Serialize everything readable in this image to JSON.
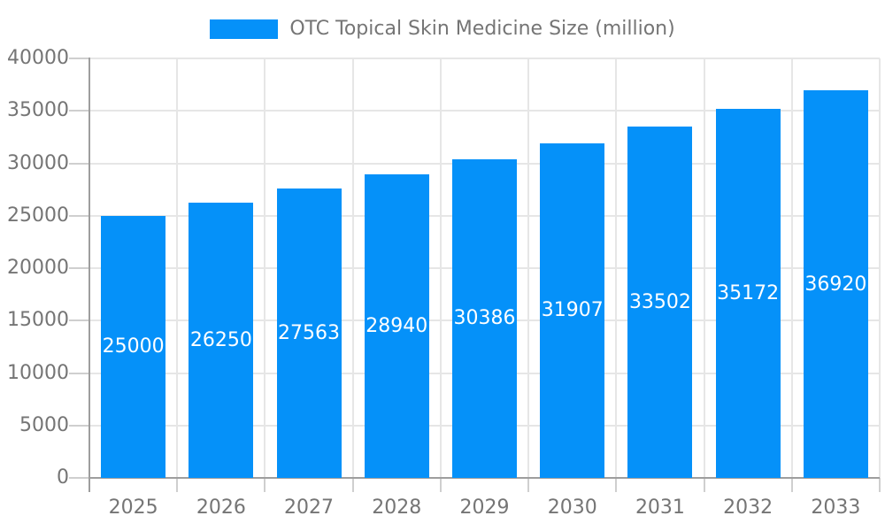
{
  "legend": {
    "label": "OTC Topical Skin Medicine Size (million)"
  },
  "chart_data": {
    "type": "bar",
    "title": "OTC Topical Skin Medicine Size (million)",
    "categories": [
      "2025",
      "2026",
      "2027",
      "2028",
      "2029",
      "2030",
      "2031",
      "2032",
      "2033"
    ],
    "values": [
      25000,
      26250,
      27563,
      28940,
      30386,
      31907,
      33502,
      35172,
      36920
    ],
    "xlabel": "",
    "ylabel": "",
    "ylim": [
      0,
      40000
    ],
    "ytick_step": 5000,
    "ytick_labels": [
      "0",
      "5000",
      "10000",
      "15000",
      "20000",
      "25000",
      "30000",
      "35000",
      "40000"
    ],
    "grid": true,
    "legend_position": "top-center",
    "colors": {
      "bar": "#0591f9",
      "grid": "#e6e6e6",
      "axis": "#9e9e9e",
      "tick": "#cfcfcf",
      "text": "#757575",
      "value_label": "#ffffff"
    }
  }
}
